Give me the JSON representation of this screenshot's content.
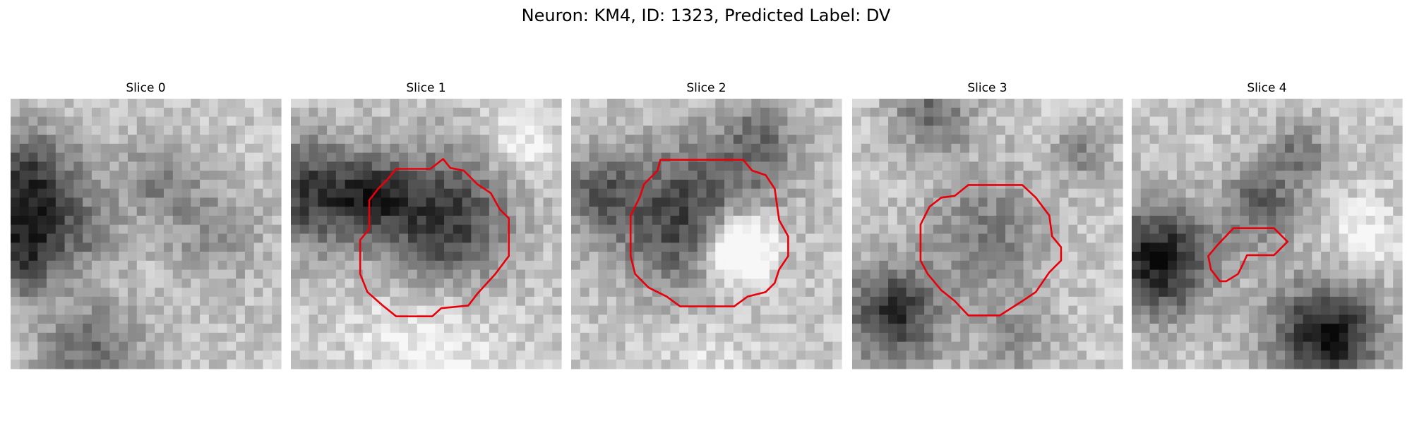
{
  "title": "Neuron: KM4, ID: 1323, Predicted Label: DV",
  "panels": [
    {
      "title": "Slice 0"
    },
    {
      "title": "Slice 1"
    },
    {
      "title": "Slice 2"
    },
    {
      "title": "Slice 3"
    },
    {
      "title": "Slice 4"
    }
  ]
}
